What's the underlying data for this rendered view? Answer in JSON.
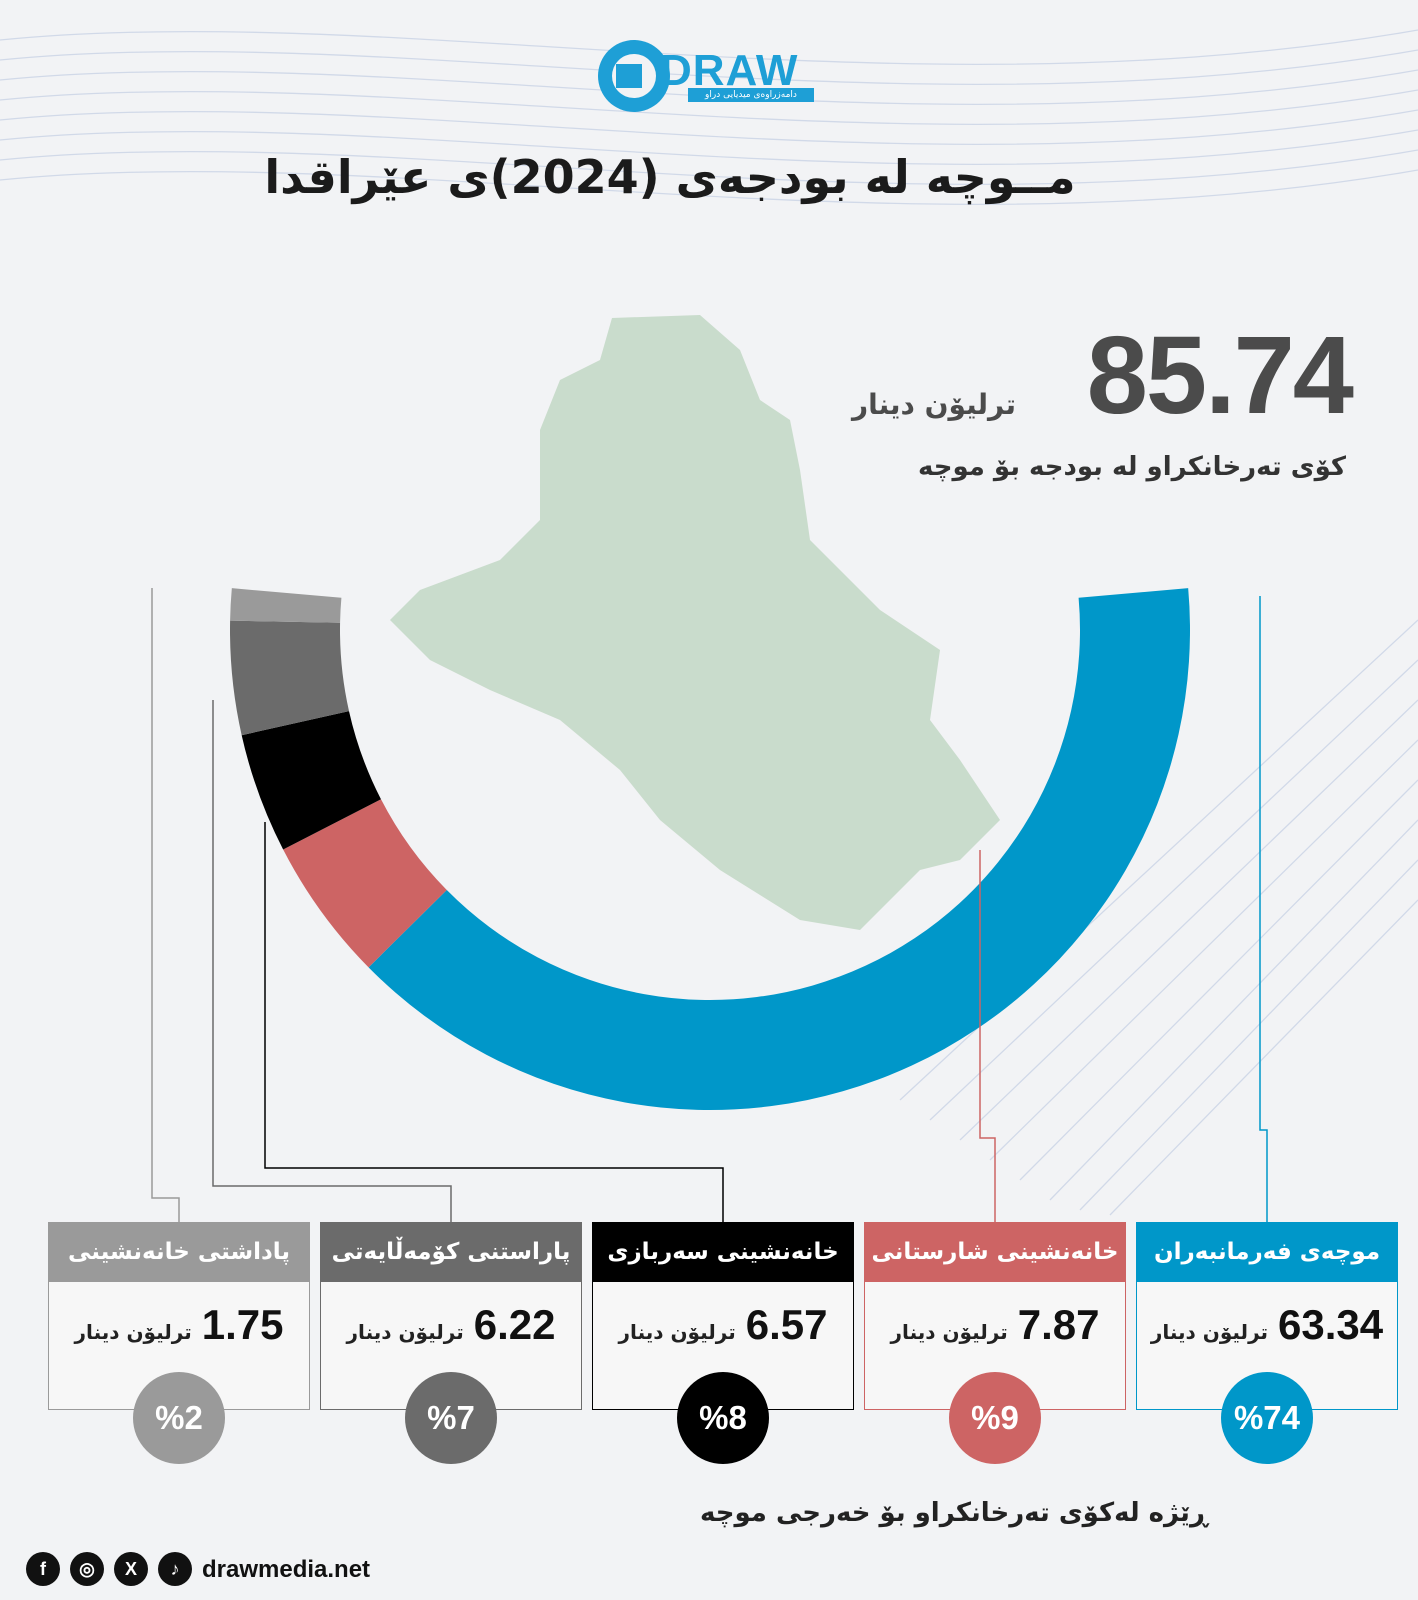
{
  "logo": {
    "text": "DRAW",
    "subtitle": "دامەزراوەی میدیایی دراو"
  },
  "title": "مــوچە لە بودجەی (2024)ی عێراقدا",
  "total": {
    "value": "85.74",
    "unit": "ترلیۆن دینار",
    "caption": "کۆی تەرخانکراو لە بودجە بۆ موچە"
  },
  "chart_data": {
    "type": "pie",
    "unit": "ترلیۆن دینار",
    "total": 85.74,
    "categories": [
      "موچەی فەرمانبەران",
      "خانەنشینی شارستانی",
      "خانەنشینی سەربازی",
      "پاراستنی کۆمەڵایەتی",
      "پاداشتی خانەنشینی"
    ],
    "values": [
      63.34,
      7.87,
      6.57,
      6.22,
      1.75
    ],
    "percent_labels": [
      "%74",
      "%9",
      "%8",
      "%7",
      "%2"
    ],
    "colors": [
      "#0097c9",
      "#cd6464",
      "#000000",
      "#6b6b6b",
      "#9a9a9a"
    ]
  },
  "footer": {
    "caption": "ڕێژە لەکۆی تەرخانکراو بۆ خەرجی موچە",
    "site": "drawmedia.net"
  },
  "social_icons": [
    "facebook-icon",
    "instagram-icon",
    "x-icon",
    "tiktok-icon"
  ]
}
